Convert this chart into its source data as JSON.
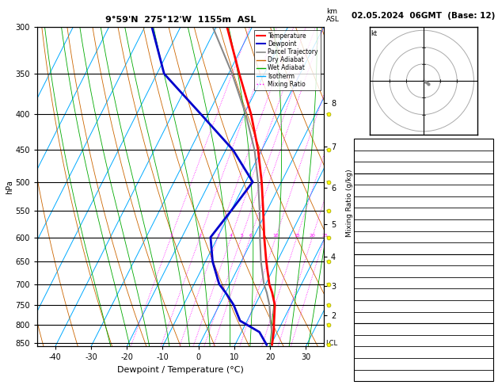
{
  "title_left": "9°59'N  275°12'W  1155m  ASL",
  "title_right": "02.05.2024  06GMT  (Base: 12)",
  "xlabel": "Dewpoint / Temperature (°C)",
  "ylabel_left": "hPa",
  "pressure_levels": [
    300,
    350,
    400,
    450,
    500,
    550,
    600,
    650,
    700,
    750,
    800,
    850
  ],
  "pres_min": 300,
  "pres_max": 860,
  "temp_min": -45,
  "temp_max": 35,
  "skew_factor": 45.0,
  "temp_profile": {
    "pressure": [
      855,
      820,
      790,
      750,
      720,
      700,
      650,
      600,
      550,
      500,
      450,
      400,
      350,
      300
    ],
    "temp": [
      20.3,
      19.0,
      17.5,
      15.5,
      13.0,
      11.0,
      7.0,
      3.0,
      -1.0,
      -5.5,
      -11.0,
      -18.0,
      -27.0,
      -37.0
    ]
  },
  "dewp_profile": {
    "pressure": [
      855,
      820,
      790,
      750,
      720,
      700,
      650,
      600,
      550,
      500,
      450,
      400,
      350,
      300
    ],
    "temp": [
      18.8,
      15.0,
      8.0,
      4.0,
      0.0,
      -3.0,
      -8.0,
      -12.0,
      -10.0,
      -8.0,
      -18.0,
      -32.0,
      -48.0,
      -58.0
    ]
  },
  "parcel_profile": {
    "pressure": [
      855,
      820,
      790,
      750,
      720,
      700,
      650,
      600,
      550,
      500,
      450,
      400,
      350,
      300
    ],
    "temp": [
      20.3,
      18.5,
      16.5,
      14.0,
      11.5,
      9.5,
      5.5,
      1.8,
      -2.0,
      -6.5,
      -12.0,
      -19.5,
      -29.0,
      -41.0
    ]
  },
  "mixing_ratio_lines": [
    1,
    2,
    3,
    4,
    5,
    6,
    10,
    15,
    20,
    25
  ],
  "right_km_labels": [
    {
      "pressure": 385,
      "label": "8"
    },
    {
      "pressure": 445,
      "label": "7"
    },
    {
      "pressure": 510,
      "label": "6"
    },
    {
      "pressure": 575,
      "label": "5"
    },
    {
      "pressure": 640,
      "label": "4"
    },
    {
      "pressure": 705,
      "label": "3"
    },
    {
      "pressure": 775,
      "label": "2"
    }
  ],
  "lcl_pressure": 852,
  "yellow_wind_levels": [
    855,
    800,
    750,
    700,
    650,
    600,
    550,
    500,
    450,
    400
  ],
  "colors": {
    "temperature": "#ff0000",
    "dewpoint": "#0000cc",
    "parcel": "#888888",
    "dry_adiabat": "#cc6600",
    "wet_adiabat": "#00aa00",
    "isotherm": "#00aaff",
    "mixing_ratio": "#ff00ff",
    "background": "#ffffff",
    "grid": "#000000"
  }
}
